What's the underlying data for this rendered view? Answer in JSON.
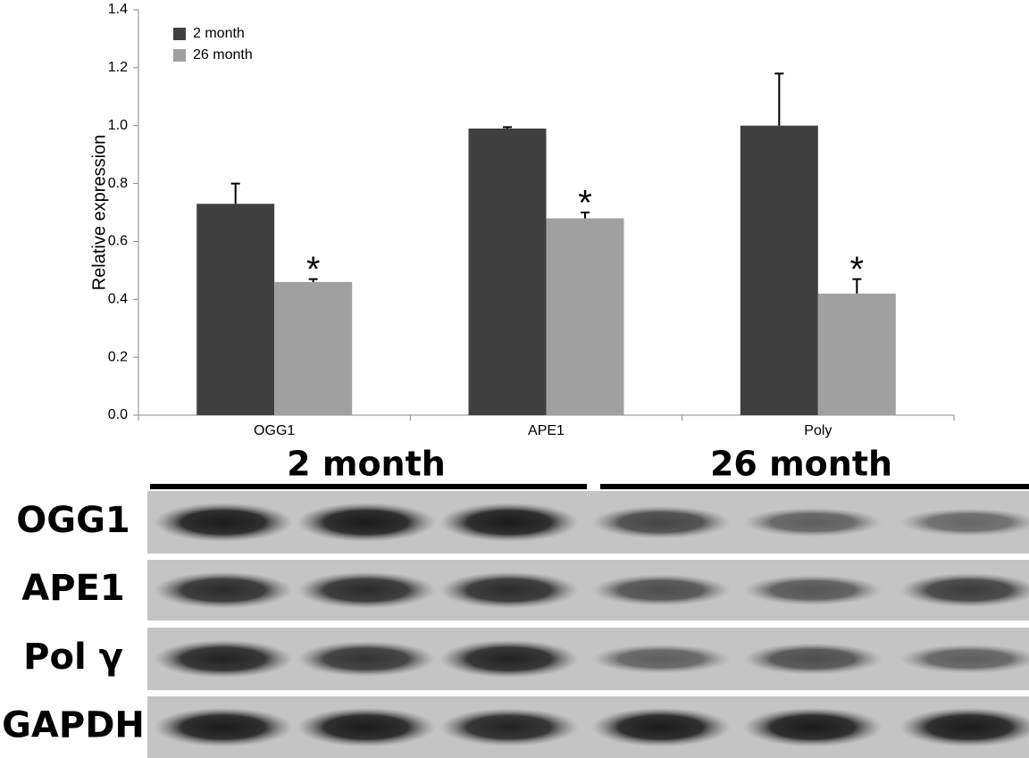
{
  "chart_data": {
    "type": "bar",
    "y_label": "Relative expression",
    "categories": [
      "OGG1",
      "APE1",
      "Poly"
    ],
    "series": [
      {
        "name": "2 month",
        "color": "#404040",
        "values": [
          0.73,
          0.99,
          1.0
        ],
        "errors": [
          0.07,
          0.005,
          0.18
        ]
      },
      {
        "name": "26 month",
        "color": "#a0a0a0",
        "values": [
          0.46,
          0.68,
          0.42
        ],
        "errors": [
          0.01,
          0.02,
          0.05
        ],
        "significance_marks": [
          "*",
          "*",
          "*"
        ]
      }
    ],
    "ylim": [
      0,
      1.4
    ],
    "yticks": [
      {
        "value": 0,
        "label": "0.0"
      },
      0.2,
      0.4,
      0.6,
      0.8,
      {
        "value": 1,
        "label": "1.0"
      },
      1.2,
      1.4
    ],
    "grid": false,
    "legend": "top-left"
  },
  "blot": {
    "groups": [
      "2 month",
      "26 month"
    ],
    "rows": [
      "OGG1",
      "APE1",
      "Pol γ",
      "GAPDH"
    ]
  }
}
